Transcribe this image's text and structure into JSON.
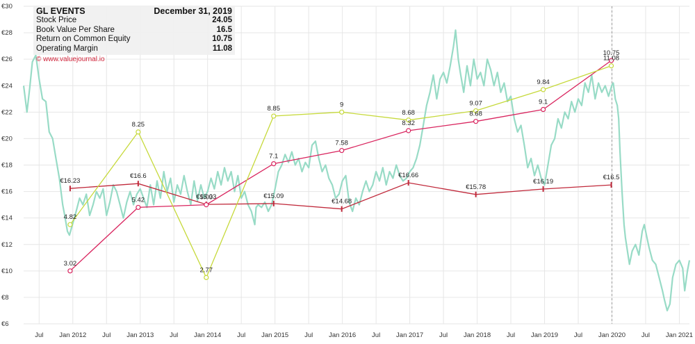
{
  "info_box": {
    "company": "GL EVENTS",
    "date": "December 31, 2019",
    "rows": [
      {
        "label": "Stock Price",
        "value": "24.05"
      },
      {
        "label": "Book Value Per Share",
        "value": "16.5"
      },
      {
        "label": "Return on Common Equity",
        "value": "10.75"
      },
      {
        "label": "Operating Margin",
        "value": "11.08"
      }
    ],
    "copyright": "© www.valuejournal.io"
  },
  "chart_data": {
    "type": "line",
    "ylim": [
      6,
      30
    ],
    "y_ticks": [
      6,
      8,
      10,
      12,
      14,
      16,
      18,
      20,
      22,
      24,
      26,
      28,
      30
    ],
    "y_tick_labels": [
      "€6",
      "€8",
      "€10",
      "€12",
      "€14",
      "€16",
      "€18",
      "€20",
      "€22",
      "€24",
      "€26",
      "€28",
      "€30"
    ],
    "x_range": [
      2011.27,
      2021.15
    ],
    "x_ticks": [
      {
        "t": 2011.5,
        "label": "Jul"
      },
      {
        "t": 2012.0,
        "label": "Jan 2012"
      },
      {
        "t": 2012.5,
        "label": "Jul"
      },
      {
        "t": 2013.0,
        "label": "Jan 2013"
      },
      {
        "t": 2013.5,
        "label": "Jul"
      },
      {
        "t": 2014.0,
        "label": "Jan 2014"
      },
      {
        "t": 2014.5,
        "label": "Jul"
      },
      {
        "t": 2015.0,
        "label": "Jan 2015"
      },
      {
        "t": 2015.5,
        "label": "Jul"
      },
      {
        "t": 2016.0,
        "label": "Jan 2016"
      },
      {
        "t": 2016.5,
        "label": "Jul"
      },
      {
        "t": 2017.0,
        "label": "Jan 2017"
      },
      {
        "t": 2017.5,
        "label": "Jul"
      },
      {
        "t": 2018.0,
        "label": "Jan 2018"
      },
      {
        "t": 2018.5,
        "label": "Jul"
      },
      {
        "t": 2019.0,
        "label": "Jan 2019"
      },
      {
        "t": 2019.5,
        "label": "Jul"
      },
      {
        "t": 2020.0,
        "label": "Jan 2020"
      },
      {
        "t": 2020.5,
        "label": "Jul"
      },
      {
        "t": 2021.0,
        "label": "Jan 2021"
      }
    ],
    "marker_date": 2020.0,
    "colors": {
      "price": "#98dbc6",
      "book_value": "#c0283a",
      "roe": "#d9245e",
      "margin": "#c6d93a",
      "grid": "#e6e6e6",
      "marker": "#999999"
    },
    "series": [
      {
        "name": "Stock Price",
        "key": "price",
        "points": [
          [
            2011.27,
            24.0
          ],
          [
            2011.32,
            22.0
          ],
          [
            2011.36,
            23.8
          ],
          [
            2011.4,
            25.8
          ],
          [
            2011.45,
            26.3
          ],
          [
            2011.5,
            24.5
          ],
          [
            2011.55,
            23.0
          ],
          [
            2011.6,
            22.8
          ],
          [
            2011.65,
            20.5
          ],
          [
            2011.7,
            20.0
          ],
          [
            2011.75,
            18.5
          ],
          [
            2011.8,
            17.0
          ],
          [
            2011.85,
            15.0
          ],
          [
            2011.88,
            14.2
          ],
          [
            2011.92,
            13.0
          ],
          [
            2011.95,
            12.7
          ],
          [
            2012.0,
            13.6
          ],
          [
            2012.05,
            14.5
          ],
          [
            2012.1,
            15.5
          ],
          [
            2012.15,
            15.0
          ],
          [
            2012.2,
            15.8
          ],
          [
            2012.25,
            14.2
          ],
          [
            2012.3,
            15.0
          ],
          [
            2012.35,
            16.0
          ],
          [
            2012.4,
            15.5
          ],
          [
            2012.45,
            16.2
          ],
          [
            2012.5,
            14.2
          ],
          [
            2012.55,
            15.2
          ],
          [
            2012.6,
            16.5
          ],
          [
            2012.65,
            16.0
          ],
          [
            2012.7,
            15.0
          ],
          [
            2012.75,
            14.0
          ],
          [
            2012.8,
            15.2
          ],
          [
            2012.85,
            16.0
          ],
          [
            2012.9,
            15.0
          ],
          [
            2012.95,
            15.8
          ],
          [
            2013.0,
            16.2
          ],
          [
            2013.05,
            15.5
          ],
          [
            2013.1,
            14.8
          ],
          [
            2013.15,
            16.5
          ],
          [
            2013.2,
            15.0
          ],
          [
            2013.25,
            16.8
          ],
          [
            2013.3,
            15.5
          ],
          [
            2013.35,
            17.5
          ],
          [
            2013.4,
            16.0
          ],
          [
            2013.45,
            17.0
          ],
          [
            2013.5,
            15.2
          ],
          [
            2013.55,
            16.5
          ],
          [
            2013.6,
            15.8
          ],
          [
            2013.65,
            17.2
          ],
          [
            2013.7,
            16.0
          ],
          [
            2013.75,
            15.0
          ],
          [
            2013.8,
            16.8
          ],
          [
            2013.85,
            15.3
          ],
          [
            2013.9,
            16.5
          ],
          [
            2013.95,
            15.5
          ],
          [
            2014.0,
            16.0
          ],
          [
            2014.05,
            17.0
          ],
          [
            2014.1,
            16.2
          ],
          [
            2014.15,
            17.5
          ],
          [
            2014.2,
            16.5
          ],
          [
            2014.25,
            17.8
          ],
          [
            2014.3,
            16.8
          ],
          [
            2014.35,
            17.5
          ],
          [
            2014.4,
            16.0
          ],
          [
            2014.45,
            17.2
          ],
          [
            2014.5,
            15.5
          ],
          [
            2014.55,
            16.0
          ],
          [
            2014.6,
            15.0
          ],
          [
            2014.65,
            14.5
          ],
          [
            2014.7,
            13.5
          ],
          [
            2014.72,
            14.8
          ],
          [
            2014.75,
            15.0
          ],
          [
            2014.8,
            14.8
          ],
          [
            2014.85,
            15.2
          ],
          [
            2014.9,
            14.5
          ],
          [
            2014.95,
            15.0
          ],
          [
            2015.0,
            16.2
          ],
          [
            2015.05,
            17.5
          ],
          [
            2015.1,
            18.0
          ],
          [
            2015.15,
            18.8
          ],
          [
            2015.2,
            18.2
          ],
          [
            2015.25,
            19.0
          ],
          [
            2015.3,
            18.0
          ],
          [
            2015.35,
            18.5
          ],
          [
            2015.4,
            17.5
          ],
          [
            2015.45,
            18.2
          ],
          [
            2015.5,
            17.8
          ],
          [
            2015.55,
            19.5
          ],
          [
            2015.6,
            19.8
          ],
          [
            2015.65,
            18.5
          ],
          [
            2015.7,
            17.5
          ],
          [
            2015.75,
            18.0
          ],
          [
            2015.8,
            17.0
          ],
          [
            2015.85,
            16.5
          ],
          [
            2015.9,
            15.5
          ],
          [
            2015.95,
            15.8
          ],
          [
            2016.0,
            16.8
          ],
          [
            2016.05,
            17.2
          ],
          [
            2016.1,
            15.2
          ],
          [
            2016.15,
            14.5
          ],
          [
            2016.2,
            15.5
          ],
          [
            2016.25,
            15.0
          ],
          [
            2016.3,
            16.0
          ],
          [
            2016.35,
            16.8
          ],
          [
            2016.4,
            16.0
          ],
          [
            2016.45,
            16.5
          ],
          [
            2016.5,
            17.5
          ],
          [
            2016.55,
            16.8
          ],
          [
            2016.6,
            17.8
          ],
          [
            2016.65,
            16.5
          ],
          [
            2016.7,
            17.5
          ],
          [
            2016.75,
            17.0
          ],
          [
            2016.8,
            18.0
          ],
          [
            2016.85,
            17.2
          ],
          [
            2016.9,
            16.8
          ],
          [
            2016.95,
            17.0
          ],
          [
            2017.0,
            17.5
          ],
          [
            2017.05,
            17.8
          ],
          [
            2017.1,
            18.5
          ],
          [
            2017.15,
            19.5
          ],
          [
            2017.2,
            21.0
          ],
          [
            2017.25,
            22.5
          ],
          [
            2017.3,
            23.5
          ],
          [
            2017.35,
            24.8
          ],
          [
            2017.4,
            23.0
          ],
          [
            2017.45,
            24.5
          ],
          [
            2017.5,
            25.0
          ],
          [
            2017.55,
            24.2
          ],
          [
            2017.6,
            25.5
          ],
          [
            2017.65,
            27.0
          ],
          [
            2017.68,
            28.2
          ],
          [
            2017.72,
            26.0
          ],
          [
            2017.75,
            25.0
          ],
          [
            2017.8,
            23.5
          ],
          [
            2017.85,
            25.5
          ],
          [
            2017.9,
            24.0
          ],
          [
            2017.95,
            26.0
          ],
          [
            2018.0,
            24.5
          ],
          [
            2018.05,
            25.0
          ],
          [
            2018.1,
            24.0
          ],
          [
            2018.15,
            26.0
          ],
          [
            2018.2,
            25.2
          ],
          [
            2018.25,
            24.0
          ],
          [
            2018.3,
            25.0
          ],
          [
            2018.35,
            23.5
          ],
          [
            2018.4,
            24.2
          ],
          [
            2018.45,
            22.8
          ],
          [
            2018.5,
            23.2
          ],
          [
            2018.55,
            21.5
          ],
          [
            2018.6,
            20.5
          ],
          [
            2018.65,
            21.0
          ],
          [
            2018.7,
            19.5
          ],
          [
            2018.75,
            17.8
          ],
          [
            2018.8,
            18.5
          ],
          [
            2018.85,
            17.2
          ],
          [
            2018.9,
            18.0
          ],
          [
            2018.95,
            17.0
          ],
          [
            2019.0,
            16.5
          ],
          [
            2019.05,
            18.0
          ],
          [
            2019.1,
            19.5
          ],
          [
            2019.15,
            20.0
          ],
          [
            2019.2,
            21.5
          ],
          [
            2019.25,
            20.8
          ],
          [
            2019.3,
            22.0
          ],
          [
            2019.35,
            21.5
          ],
          [
            2019.4,
            22.8
          ],
          [
            2019.45,
            22.0
          ],
          [
            2019.5,
            23.0
          ],
          [
            2019.55,
            22.5
          ],
          [
            2019.6,
            24.2
          ],
          [
            2019.65,
            23.5
          ],
          [
            2019.7,
            24.8
          ],
          [
            2019.75,
            23.0
          ],
          [
            2019.8,
            24.2
          ],
          [
            2019.85,
            23.5
          ],
          [
            2019.9,
            24.0
          ],
          [
            2019.95,
            23.2
          ],
          [
            2020.0,
            24.05
          ],
          [
            2020.02,
            24.2
          ],
          [
            2020.05,
            23.0
          ],
          [
            2020.08,
            22.5
          ],
          [
            2020.1,
            21.5
          ],
          [
            2020.12,
            19.0
          ],
          [
            2020.15,
            16.0
          ],
          [
            2020.18,
            13.5
          ],
          [
            2020.2,
            12.5
          ],
          [
            2020.23,
            11.5
          ],
          [
            2020.26,
            10.5
          ],
          [
            2020.3,
            11.5
          ],
          [
            2020.35,
            12.0
          ],
          [
            2020.4,
            11.2
          ],
          [
            2020.45,
            13.0
          ],
          [
            2020.48,
            13.5
          ],
          [
            2020.52,
            12.5
          ],
          [
            2020.55,
            11.8
          ],
          [
            2020.6,
            10.8
          ],
          [
            2020.65,
            10.5
          ],
          [
            2020.7,
            9.5
          ],
          [
            2020.75,
            8.5
          ],
          [
            2020.78,
            7.8
          ],
          [
            2020.82,
            7.0
          ],
          [
            2020.86,
            7.5
          ],
          [
            2020.9,
            9.5
          ],
          [
            2020.95,
            10.5
          ],
          [
            2021.0,
            10.8
          ],
          [
            2021.05,
            10.2
          ],
          [
            2021.08,
            8.5
          ],
          [
            2021.12,
            10.0
          ],
          [
            2021.15,
            10.8
          ]
        ]
      },
      {
        "name": "Book Value Per Share",
        "key": "book_value",
        "points": [
          [
            2011.96,
            16.23
          ],
          [
            2012.97,
            16.6
          ],
          [
            2013.98,
            15.03
          ],
          [
            2014.98,
            15.09
          ],
          [
            2015.99,
            14.68
          ],
          [
            2016.98,
            16.66
          ],
          [
            2017.98,
            15.78
          ],
          [
            2018.98,
            16.19
          ],
          [
            2019.99,
            16.5
          ]
        ],
        "labels": [
          "€16.23",
          "€16.6",
          "€15.03",
          "€15.09",
          "€14.68",
          "€16.66",
          "€15.78",
          "€16.19",
          "€16.5"
        ]
      },
      {
        "name": "Return on Common Equity",
        "key": "roe",
        "points": [
          [
            2011.96,
            10.0
          ],
          [
            2012.97,
            14.8
          ],
          [
            2013.98,
            15.0
          ],
          [
            2014.98,
            18.1
          ],
          [
            2015.99,
            19.1
          ],
          [
            2016.98,
            20.6
          ],
          [
            2017.98,
            21.3
          ],
          [
            2018.98,
            22.2
          ],
          [
            2019.99,
            25.9
          ]
        ],
        "labels": [
          "3.02",
          "5.42",
          "5.03",
          "7.1",
          "7.58",
          "8.32",
          "8.68",
          "9.1",
          "10.75"
        ]
      },
      {
        "name": "Operating Margin",
        "key": "margin",
        "points": [
          [
            2011.96,
            13.5
          ],
          [
            2012.97,
            20.5
          ],
          [
            2013.98,
            9.5
          ],
          [
            2014.98,
            21.7
          ],
          [
            2015.99,
            22.0
          ],
          [
            2016.98,
            21.4
          ],
          [
            2017.98,
            22.1
          ],
          [
            2018.98,
            23.7
          ],
          [
            2019.99,
            25.5
          ]
        ],
        "labels": [
          "4.82",
          "8.25",
          "2.77",
          "8.85",
          "9",
          "8.68",
          "9.07",
          "9.84",
          "11.08"
        ]
      }
    ]
  }
}
